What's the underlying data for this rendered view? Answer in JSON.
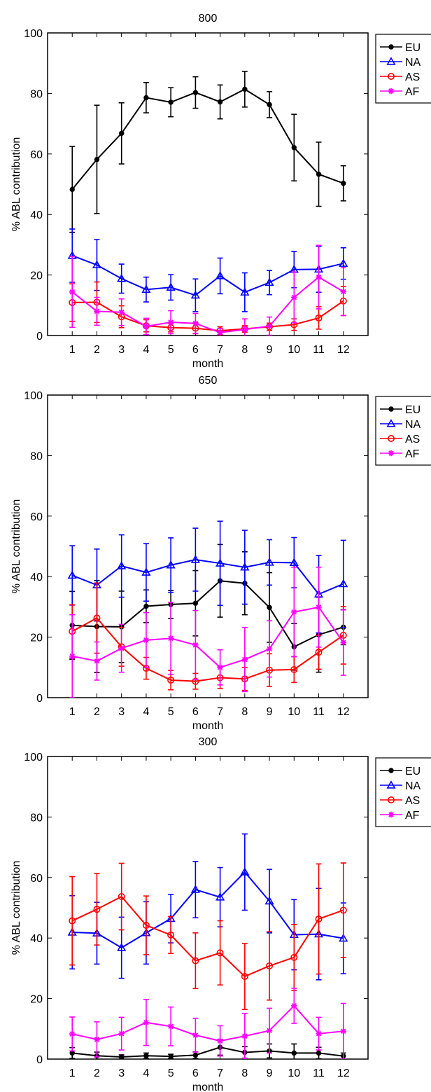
{
  "chart_data": [
    {
      "type": "line",
      "title": "800",
      "xlabel": "month",
      "ylabel": "% ABL contribution",
      "xlim": [
        0,
        13
      ],
      "ylim": [
        0,
        100
      ],
      "xticks": [
        "1",
        "2",
        "3",
        "4",
        "5",
        "6",
        "7",
        "8",
        "9",
        "10",
        "11",
        "12"
      ],
      "yticks": [
        "0",
        "20",
        "40",
        "60",
        "80",
        "100"
      ],
      "legend_position": "outside-top-right",
      "categories": [
        1,
        2,
        3,
        4,
        5,
        6,
        7,
        8,
        9,
        10,
        11,
        12
      ],
      "series": [
        {
          "name": "EU",
          "color": "#000000",
          "marker": "dot",
          "values": [
            48.3,
            58.2,
            66.8,
            78.6,
            77.1,
            80.3,
            77.2,
            81.4,
            76.3,
            62.1,
            53.3,
            50.3
          ],
          "errors": [
            14.2,
            17.9,
            10.1,
            5.0,
            4.8,
            5.2,
            5.6,
            5.9,
            4.3,
            11.0,
            10.6,
            5.8
          ]
        },
        {
          "name": "NA",
          "color": "#0000ff",
          "marker": "triangle",
          "values": [
            26.4,
            23.3,
            18.8,
            15.2,
            15.9,
            13.3,
            19.7,
            14.3,
            17.5,
            21.8,
            21.9,
            23.8
          ],
          "errors": [
            8.8,
            8.4,
            4.8,
            4.1,
            4.2,
            5.4,
            5.9,
            6.4,
            4.0,
            6.0,
            7.6,
            5.2
          ]
        },
        {
          "name": "AS",
          "color": "#ff0000",
          "marker": "circle",
          "values": [
            10.9,
            11.0,
            6.2,
            3.2,
            2.6,
            2.4,
            1.6,
            2.2,
            2.9,
            3.6,
            5.8,
            11.4
          ],
          "errors": [
            6.2,
            6.7,
            3.6,
            2.0,
            1.4,
            1.8,
            1.3,
            1.1,
            1.2,
            1.9,
            3.7,
            4.8
          ]
        },
        {
          "name": "AF",
          "color": "#ff00ff",
          "marker": "star",
          "values": [
            14.4,
            8.0,
            7.7,
            3.0,
            4.4,
            4.0,
            1.0,
            2.0,
            3.1,
            12.6,
            19.3,
            14.5
          ],
          "errors": [
            11.7,
            4.6,
            4.4,
            2.7,
            3.8,
            3.3,
            1.3,
            3.5,
            3.0,
            8.4,
            10.5,
            7.9
          ]
        }
      ]
    },
    {
      "type": "line",
      "title": "650",
      "xlabel": "month",
      "ylabel": "% ABL contribution",
      "xlim": [
        0,
        13
      ],
      "ylim": [
        0,
        100
      ],
      "xticks": [
        "1",
        "2",
        "3",
        "4",
        "5",
        "6",
        "7",
        "8",
        "9",
        "10",
        "11",
        "12"
      ],
      "yticks": [
        "0",
        "20",
        "40",
        "60",
        "80",
        "100"
      ],
      "legend_position": "outside-top-right",
      "categories": [
        1,
        2,
        3,
        4,
        5,
        6,
        7,
        8,
        9,
        10,
        11,
        12
      ],
      "series": [
        {
          "name": "EU",
          "color": "#000000",
          "marker": "dot",
          "values": [
            23.9,
            23.5,
            23.4,
            30.2,
            30.8,
            31.2,
            38.6,
            37.8,
            29.8,
            16.8,
            20.8,
            23.3
          ],
          "errors": [
            11.2,
            15.2,
            11.8,
            5.4,
            4.6,
            10.8,
            12.0,
            10.4,
            11.5,
            7.7,
            12.4,
            5.8
          ]
        },
        {
          "name": "NA",
          "color": "#0000ff",
          "marker": "triangle",
          "values": [
            40.4,
            37.2,
            43.5,
            41.4,
            43.8,
            45.6,
            44.4,
            43.1,
            44.7,
            44.6,
            34.2,
            37.6
          ],
          "errors": [
            9.8,
            11.9,
            10.3,
            9.5,
            9.0,
            10.4,
            13.9,
            12.2,
            7.5,
            8.3,
            12.8,
            14.4
          ]
        },
        {
          "name": "AS",
          "color": "#ff0000",
          "marker": "circle",
          "values": [
            21.9,
            26.3,
            16.8,
            9.7,
            5.8,
            5.4,
            6.6,
            6.2,
            9.1,
            9.3,
            15.0,
            20.6
          ],
          "errors": [
            8.8,
            11.6,
            6.4,
            3.6,
            3.2,
            2.6,
            3.6,
            3.8,
            5.4,
            4.3,
            5.6,
            9.5
          ]
        },
        {
          "name": "AF",
          "color": "#ff00ff",
          "marker": "star",
          "values": [
            13.7,
            12.1,
            16.3,
            19.0,
            19.6,
            17.4,
            10.0,
            12.6,
            16.1,
            28.3,
            29.9,
            18.2
          ],
          "errors": [
            13.7,
            6.3,
            7.9,
            9.1,
            11.9,
            11.4,
            5.8,
            10.6,
            9.3,
            14.8,
            13.2,
            10.8
          ]
        }
      ]
    },
    {
      "type": "line",
      "title": "300",
      "xlabel": "month",
      "ylabel": "% ABL contribution",
      "xlim": [
        0,
        13
      ],
      "ylim": [
        0,
        100
      ],
      "xticks": [
        "1",
        "2",
        "3",
        "4",
        "5",
        "6",
        "7",
        "8",
        "9",
        "10",
        "11",
        "12"
      ],
      "yticks": [
        "0",
        "20",
        "40",
        "60",
        "80",
        "100"
      ],
      "legend_position": "outside-top-right",
      "categories": [
        1,
        2,
        3,
        4,
        5,
        6,
        7,
        8,
        9,
        10,
        11,
        12
      ],
      "series": [
        {
          "name": "EU",
          "color": "#000000",
          "marker": "dot",
          "values": [
            2.0,
            1.1,
            0.7,
            1.1,
            0.9,
            1.3,
            3.9,
            2.2,
            2.7,
            2.0,
            2.0,
            1.0
          ],
          "errors": [
            1.8,
            1.2,
            0.7,
            0.9,
            0.7,
            1.1,
            2.6,
            1.9,
            2.3,
            3.0,
            1.9,
            1.0
          ]
        },
        {
          "name": "NA",
          "color": "#0000ff",
          "marker": "triangle",
          "values": [
            41.9,
            41.6,
            36.8,
            41.7,
            46.4,
            56.0,
            53.5,
            61.8,
            52.2,
            41.1,
            41.3,
            39.9
          ],
          "errors": [
            12.1,
            10.2,
            10.1,
            10.3,
            8.0,
            9.3,
            9.8,
            12.6,
            10.5,
            11.6,
            15.1,
            11.7
          ]
        },
        {
          "name": "AS",
          "color": "#ff0000",
          "marker": "circle",
          "values": [
            45.7,
            49.5,
            53.7,
            44.2,
            41.0,
            32.5,
            35.1,
            27.3,
            30.8,
            33.6,
            46.3,
            49.2
          ],
          "errors": [
            14.6,
            11.8,
            11.0,
            9.7,
            6.1,
            9.2,
            10.6,
            10.9,
            11.3,
            10.9,
            18.2,
            15.6
          ]
        },
        {
          "name": "AF",
          "color": "#ff00ff",
          "marker": "star",
          "values": [
            8.3,
            6.5,
            8.4,
            12.1,
            10.8,
            7.9,
            6.0,
            7.6,
            9.4,
            17.6,
            8.4,
            9.2
          ],
          "errors": [
            5.6,
            5.8,
            5.4,
            7.6,
            6.4,
            5.6,
            5.0,
            7.5,
            7.4,
            5.8,
            5.4,
            9.2
          ]
        }
      ]
    }
  ]
}
